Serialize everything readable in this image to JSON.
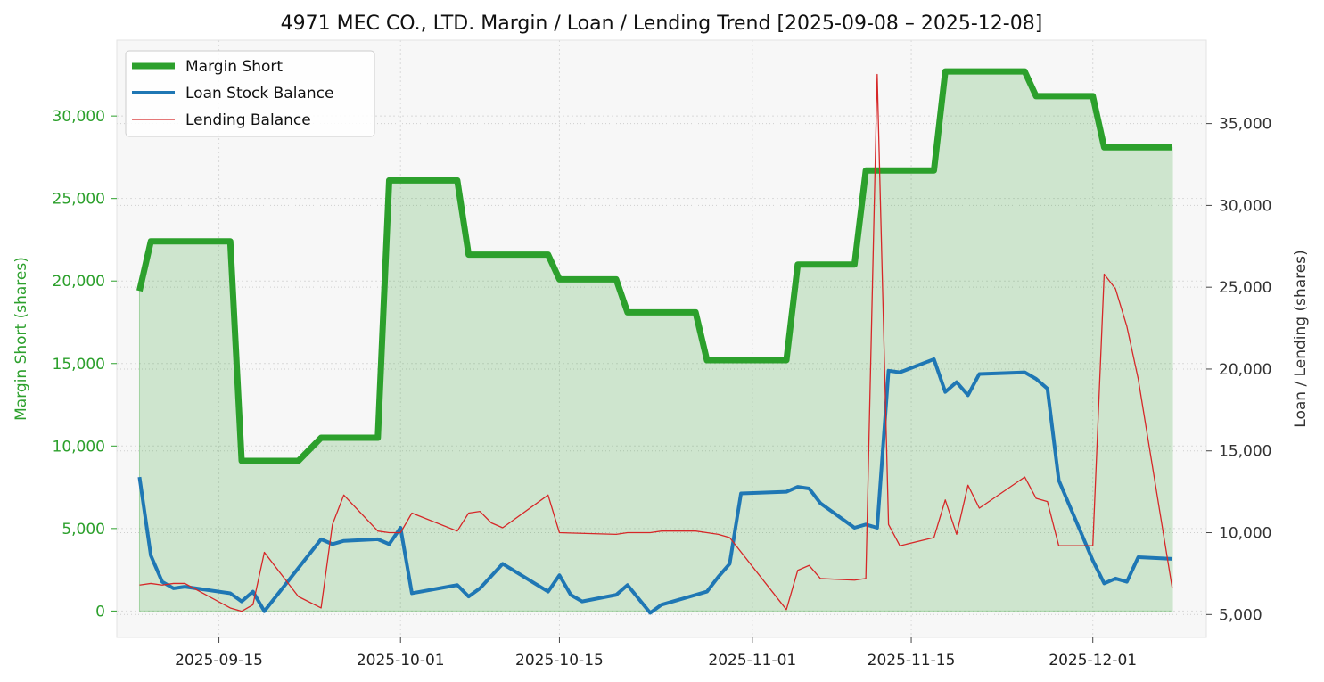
{
  "chart_data": {
    "type": "line",
    "title": "4971 MEC CO., LTD. Margin / Loan / Lending Trend [2025-09-08 – 2025-12-08]",
    "ylabel_left": "Margin Short (shares)",
    "ylabel_right": "Loan / Lending (shares)",
    "xlim": [
      "2025-09-06",
      "2025-12-11"
    ],
    "ylim_left": [
      -1600,
      34600
    ],
    "ylim_right": [
      3600,
      40100
    ],
    "x_ticks": [
      "2025-09-15",
      "2025-10-01",
      "2025-10-15",
      "2025-11-01",
      "2025-11-15",
      "2025-12-01"
    ],
    "y_ticks_left": [
      0,
      5000,
      10000,
      15000,
      20000,
      25000,
      30000
    ],
    "y_ticks_left_labels": [
      "0",
      "5,000",
      "10,000",
      "15,000",
      "20,000",
      "25,000",
      "30,000"
    ],
    "y_ticks_right": [
      5000,
      10000,
      15000,
      20000,
      25000,
      30000,
      35000
    ],
    "y_ticks_right_labels": [
      "5,000",
      "10,000",
      "15,000",
      "20,000",
      "25,000",
      "30,000",
      "35,000"
    ],
    "grid": true,
    "legend_position": "top-left",
    "colors": {
      "margin_short": "#2ca02c",
      "loan": "#1f77b4",
      "lending": "#d62728",
      "fill": "#2ca02c",
      "left_axis": "#2ca02c"
    },
    "series": [
      {
        "name": "Margin Short",
        "axis": "left",
        "x": [
          "2025-09-08",
          "2025-09-09",
          "2025-09-10",
          "2025-09-11",
          "2025-09-12",
          "2025-09-16",
          "2025-09-17",
          "2025-09-18",
          "2025-09-19",
          "2025-09-22",
          "2025-09-24",
          "2025-09-25",
          "2025-09-26",
          "2025-09-29",
          "2025-09-30",
          "2025-10-01",
          "2025-10-02",
          "2025-10-03",
          "2025-10-06",
          "2025-10-07",
          "2025-10-08",
          "2025-10-09",
          "2025-10-10",
          "2025-10-14",
          "2025-10-15",
          "2025-10-16",
          "2025-10-17",
          "2025-10-20",
          "2025-10-21",
          "2025-10-22",
          "2025-10-23",
          "2025-10-24",
          "2025-10-27",
          "2025-10-28",
          "2025-10-29",
          "2025-10-30",
          "2025-10-31",
          "2025-11-04",
          "2025-11-05",
          "2025-11-06",
          "2025-11-07",
          "2025-11-10",
          "2025-11-11",
          "2025-11-12",
          "2025-11-13",
          "2025-11-14",
          "2025-11-17",
          "2025-11-18",
          "2025-11-19",
          "2025-11-20",
          "2025-11-21",
          "2025-11-25",
          "2025-11-26",
          "2025-11-27",
          "2025-11-28",
          "2025-12-01",
          "2025-12-02",
          "2025-12-03",
          "2025-12-04",
          "2025-12-05",
          "2025-12-08"
        ],
        "values": [
          19400,
          22400,
          22400,
          22400,
          22400,
          22400,
          9100,
          9100,
          9100,
          9100,
          10500,
          10500,
          10500,
          10500,
          26100,
          26100,
          26100,
          26100,
          26100,
          21600,
          21600,
          21600,
          21600,
          21600,
          20100,
          20100,
          20100,
          20100,
          18100,
          18100,
          18100,
          18100,
          18100,
          15200,
          15200,
          15200,
          15200,
          15200,
          21000,
          21000,
          21000,
          21000,
          26700,
          26700,
          26700,
          26700,
          26700,
          32700,
          32700,
          32700,
          32700,
          32700,
          31200,
          31200,
          31200,
          31200,
          28100,
          28100,
          28100,
          28100,
          28100
        ]
      },
      {
        "name": "Loan Stock Balance",
        "axis": "right",
        "x": [
          "2025-09-08",
          "2025-09-09",
          "2025-09-10",
          "2025-09-11",
          "2025-09-12",
          "2025-09-16",
          "2025-09-17",
          "2025-09-18",
          "2025-09-19",
          "2025-09-24",
          "2025-09-25",
          "2025-09-26",
          "2025-09-29",
          "2025-09-30",
          "2025-10-01",
          "2025-10-02",
          "2025-10-06",
          "2025-10-07",
          "2025-10-08",
          "2025-10-10",
          "2025-10-14",
          "2025-10-15",
          "2025-10-16",
          "2025-10-17",
          "2025-10-20",
          "2025-10-21",
          "2025-10-23",
          "2025-10-24",
          "2025-10-28",
          "2025-10-29",
          "2025-10-30",
          "2025-10-31",
          "2025-11-04",
          "2025-11-05",
          "2025-11-06",
          "2025-11-07",
          "2025-11-10",
          "2025-11-11",
          "2025-11-12",
          "2025-11-13",
          "2025-11-14",
          "2025-11-17",
          "2025-11-18",
          "2025-11-19",
          "2025-11-20",
          "2025-11-21",
          "2025-11-25",
          "2025-11-26",
          "2025-11-27",
          "2025-11-28",
          "2025-12-01",
          "2025-12-02",
          "2025-12-03",
          "2025-12-04",
          "2025-12-05",
          "2025-12-08"
        ],
        "values": [
          13400,
          8600,
          7000,
          6600,
          6700,
          6300,
          5800,
          6400,
          5200,
          9600,
          9300,
          9500,
          9600,
          9300,
          10300,
          6300,
          6800,
          6100,
          6600,
          8100,
          6400,
          7400,
          6200,
          5800,
          6200,
          6800,
          5100,
          5600,
          6400,
          7300,
          8100,
          12400,
          12500,
          12800,
          12700,
          11800,
          10300,
          10500,
          10300,
          19900,
          19800,
          20600,
          18600,
          19200,
          18400,
          19700,
          19800,
          19400,
          18800,
          13200,
          8300,
          6900,
          7200,
          7000,
          8500,
          8400
        ]
      },
      {
        "name": "Lending Balance",
        "axis": "right",
        "x": [
          "2025-09-08",
          "2025-09-09",
          "2025-09-10",
          "2025-09-11",
          "2025-09-12",
          "2025-09-16",
          "2025-09-17",
          "2025-09-18",
          "2025-09-19",
          "2025-09-22",
          "2025-09-24",
          "2025-09-25",
          "2025-09-26",
          "2025-09-29",
          "2025-09-30",
          "2025-10-01",
          "2025-10-02",
          "2025-10-06",
          "2025-10-07",
          "2025-10-08",
          "2025-10-09",
          "2025-10-10",
          "2025-10-14",
          "2025-10-15",
          "2025-10-20",
          "2025-10-21",
          "2025-10-23",
          "2025-10-24",
          "2025-10-27",
          "2025-10-28",
          "2025-10-29",
          "2025-10-30",
          "2025-11-04",
          "2025-11-05",
          "2025-11-06",
          "2025-11-07",
          "2025-11-10",
          "2025-11-11",
          "2025-11-12",
          "2025-11-13",
          "2025-11-14",
          "2025-11-17",
          "2025-11-18",
          "2025-11-19",
          "2025-11-20",
          "2025-11-21",
          "2025-11-25",
          "2025-11-26",
          "2025-11-27",
          "2025-11-28",
          "2025-12-01",
          "2025-12-02",
          "2025-12-03",
          "2025-12-04",
          "2025-12-05",
          "2025-12-08"
        ],
        "values": [
          6800,
          6900,
          6800,
          6900,
          6900,
          5400,
          5200,
          5600,
          8800,
          6100,
          5400,
          10500,
          12300,
          10100,
          10000,
          10000,
          11200,
          10100,
          11200,
          11300,
          10600,
          10300,
          12300,
          10000,
          9900,
          10000,
          10000,
          10100,
          10100,
          10000,
          9900,
          9700,
          5300,
          7700,
          8000,
          7200,
          7100,
          7200,
          38000,
          10500,
          9200,
          9700,
          12000,
          9900,
          12900,
          11500,
          13400,
          12100,
          11900,
          9200,
          9200,
          25800,
          24900,
          22600,
          19400,
          6600
        ]
      }
    ]
  }
}
